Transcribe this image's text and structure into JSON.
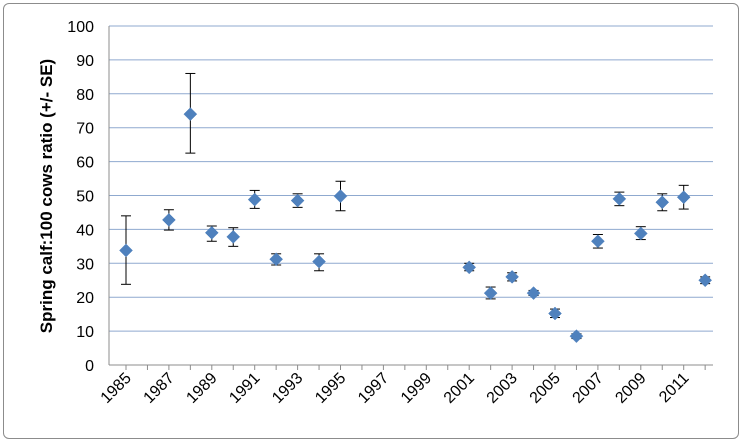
{
  "chart_data": {
    "type": "scatter",
    "title": "",
    "xlabel": "",
    "ylabel": "Spring calf:100 cows ratio (+/- SE)",
    "ylim": [
      0,
      100
    ],
    "yticks": [
      0,
      10,
      20,
      30,
      40,
      50,
      60,
      70,
      80,
      90,
      100
    ],
    "xlim": [
      1985,
      2012
    ],
    "xticks": [
      1985,
      1987,
      1989,
      1991,
      1993,
      1995,
      1997,
      1999,
      2001,
      2003,
      2005,
      2007,
      2009,
      2011
    ],
    "grid": "horizontal",
    "legend": "none",
    "marker_color": "#4f81bd",
    "series": [
      {
        "marker": "diamond",
        "points": [
          {
            "x": 1985,
            "y": 33.8,
            "err_low": 23.8,
            "err_high": 44
          },
          {
            "x": 1987,
            "y": 42.8,
            "err_low": 39.8,
            "err_high": 45.8
          },
          {
            "x": 1988,
            "y": 74,
            "err_low": 62.5,
            "err_high": 86
          },
          {
            "x": 1989,
            "y": 39,
            "err_low": 36.5,
            "err_high": 41
          },
          {
            "x": 1990,
            "y": 37.8,
            "err_low": 35,
            "err_high": 40.5
          },
          {
            "x": 1991,
            "y": 48.8,
            "err_low": 46.2,
            "err_high": 51.5
          },
          {
            "x": 1992,
            "y": 31.2,
            "err_low": 29.5,
            "err_high": 32.8
          },
          {
            "x": 1993,
            "y": 48.5,
            "err_low": 46.5,
            "err_high": 50.5
          },
          {
            "x": 1994,
            "y": 30.5,
            "err_low": 27.8,
            "err_high": 32.8
          },
          {
            "x": 1995,
            "y": 49.8,
            "err_low": 45.5,
            "err_high": 54.2
          },
          {
            "x": 2001,
            "y": 28.8,
            "err_low": 27.8,
            "err_high": 30
          },
          {
            "x": 2002,
            "y": 21.2,
            "err_low": 19.5,
            "err_high": 23
          },
          {
            "x": 2003,
            "y": 26,
            "err_low": 24.8,
            "err_high": 27.2
          },
          {
            "x": 2004,
            "y": 21.2,
            "err_low": 20.5,
            "err_high": 22
          },
          {
            "x": 2005,
            "y": 15.2,
            "err_low": 14,
            "err_high": 16.5
          },
          {
            "x": 2006,
            "y": 8.5,
            "err_low": 7.8,
            "err_high": 9.2
          },
          {
            "x": 2007,
            "y": 36.5,
            "err_low": 34.5,
            "err_high": 38.5
          },
          {
            "x": 2008,
            "y": 49,
            "err_low": 47,
            "err_high": 51
          },
          {
            "x": 2009,
            "y": 38.8,
            "err_low": 37,
            "err_high": 40.8
          },
          {
            "x": 2010,
            "y": 48,
            "err_low": 45.5,
            "err_high": 50.5
          },
          {
            "x": 2011,
            "y": 49.5,
            "err_low": 46,
            "err_high": 53
          },
          {
            "x": 2012,
            "y": 25,
            "err_low": 24,
            "err_high": 26
          }
        ]
      }
    ]
  }
}
